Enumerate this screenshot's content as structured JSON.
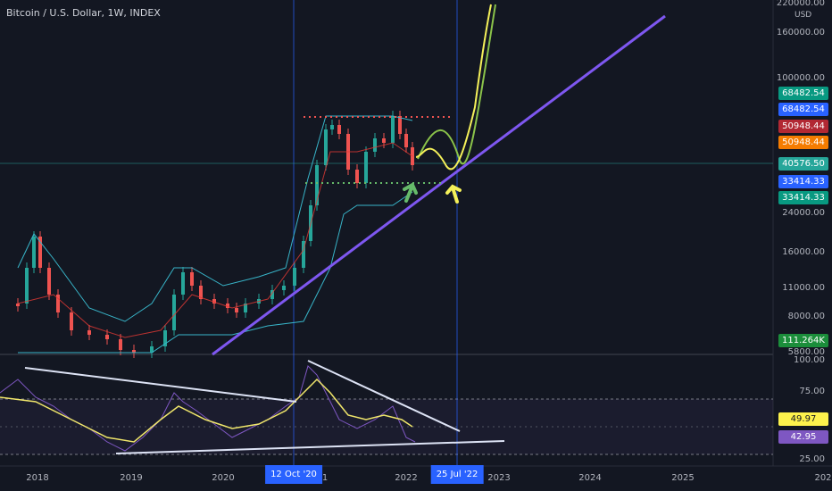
{
  "header": {
    "title": "Bitcoin / U.S. Dollar, 1W, INDEX"
  },
  "currency": "USD",
  "price_axis": [
    "220000.00",
    "160000.00",
    "100000.00",
    "24000.00",
    "16000.00",
    "11000.00",
    "8000.00",
    "5800.00"
  ],
  "badges": [
    {
      "text": "68482.54",
      "color": "#089981"
    },
    {
      "text": "68482.54",
      "color": "#2962ff"
    },
    {
      "text": "50948.44",
      "color": "#b22833"
    },
    {
      "text": "50948.44",
      "color": "#f57c00"
    },
    {
      "text": "40576.50",
      "color": "#26a69a"
    },
    {
      "text": "33414.33",
      "color": "#2962ff"
    },
    {
      "text": "33414.33",
      "color": "#089981"
    },
    {
      "text": "111.264K",
      "color": "#1b8e3b"
    }
  ],
  "rsi_axis": [
    "100.00",
    "75.00",
    "25.00"
  ],
  "rsi_badges": [
    {
      "text": "49.97",
      "color": "#fdf24c",
      "fg": "#131722"
    },
    {
      "text": "42.95",
      "color": "#7e57c2",
      "fg": "#ffffff"
    }
  ],
  "time_axis": [
    "2018",
    "2019",
    "2020",
    "1",
    "2022",
    "2023",
    "2024",
    "2025",
    "202"
  ],
  "time_highlights": [
    "12 Oct '20",
    "25 Jul '22"
  ],
  "colors": {
    "background": "#131722",
    "trend": "#7e57f0",
    "up": "#26a69a",
    "down": "#ef5350",
    "bb": "#38b5c9",
    "rsi": "#7e57c2",
    "rsi_ma": "#f0e66b",
    "proj_yellow": "#f5f15a",
    "proj_green": "#8bc34a"
  }
}
